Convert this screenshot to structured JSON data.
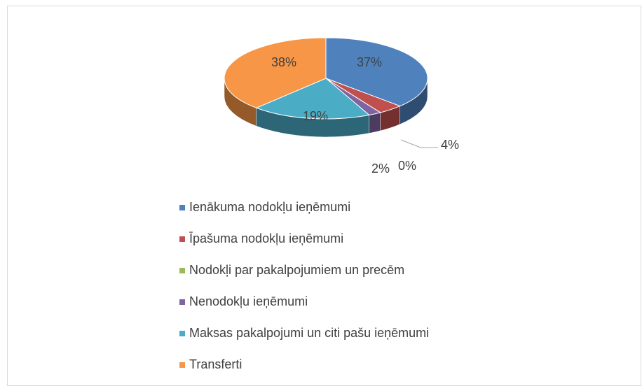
{
  "chart_data": {
    "type": "pie",
    "categories": [
      "Ienākuma nodokļu ieņēmumi",
      "Īpašuma nodokļu ieņēmumi",
      "Nodokļi par pakalpojumiem un precēm",
      "Nenodokļu ieņēmumi",
      "Maksas pakalpojumi un citi pašu ieņēmumi",
      "Transferti"
    ],
    "values": [
      37,
      4,
      0,
      2,
      19,
      38
    ],
    "value_labels": [
      "37%",
      "4%",
      "0%",
      "2%",
      "19%",
      "38%"
    ],
    "colors": [
      "#4f81bd",
      "#c0504d",
      "#9bbb59",
      "#8064a2",
      "#4bacc6",
      "#f79646"
    ],
    "legend": "bottom"
  }
}
